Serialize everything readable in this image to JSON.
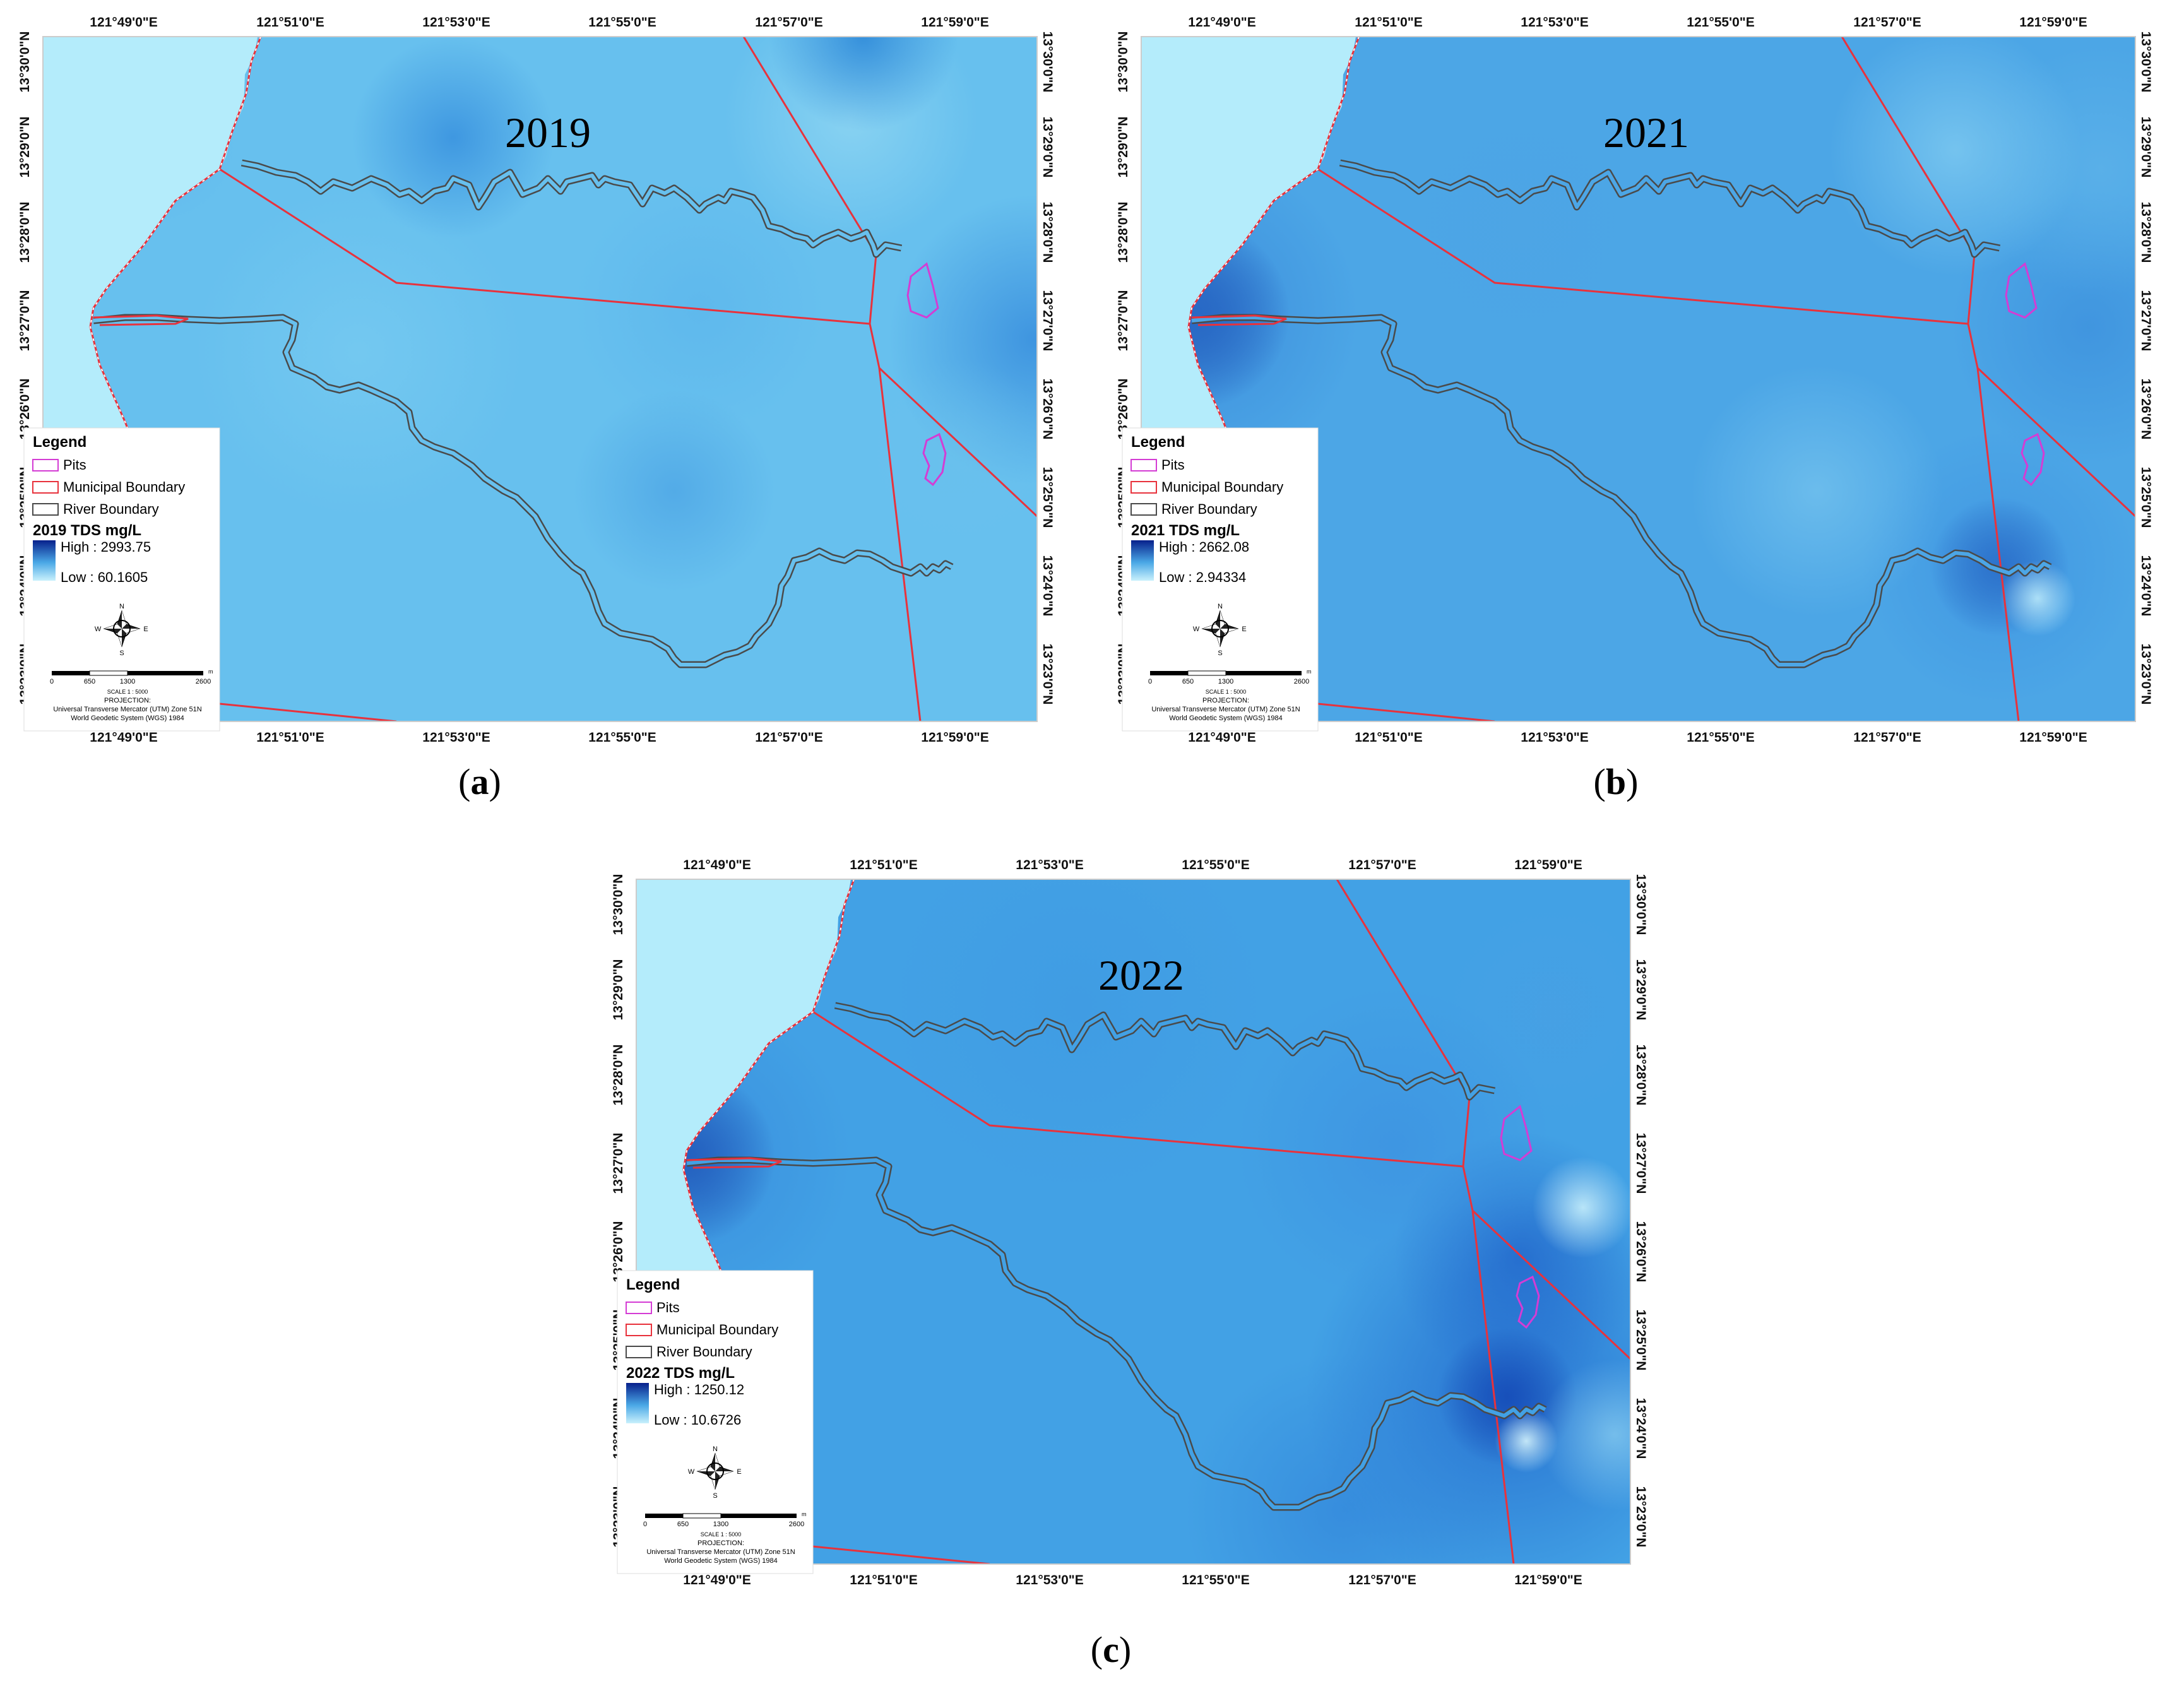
{
  "maps": [
    {
      "year": "2019",
      "caption": "a",
      "lon_ticks": [
        "121°49'0\"E",
        "121°51'0\"E",
        "121°53'0\"E",
        "121°55'0\"E",
        "121°57'0\"E",
        "121°59'0\"E"
      ],
      "lat_ticks": [
        "13°30'0\"N",
        "13°29'0\"N",
        "13°28'0\"N",
        "13°27'0\"N",
        "13°26'0\"N",
        "13°25'0\"N",
        "13°24'0\"N",
        "13°23'0\"N"
      ],
      "legend": {
        "title": "Legend",
        "items": [
          "Pits",
          "Municipal Boundary",
          "River Boundary"
        ],
        "scale_title": "2019 TDS mg/L",
        "high": "High : 2993.75",
        "low": "Low : 60.1605"
      }
    },
    {
      "year": "2021",
      "caption": "b",
      "lon_ticks": [
        "121°49'0\"E",
        "121°51'0\"E",
        "121°53'0\"E",
        "121°55'0\"E",
        "121°57'0\"E",
        "121°59'0\"E"
      ],
      "lat_ticks": [
        "13°30'0\"N",
        "13°29'0\"N",
        "13°28'0\"N",
        "13°27'0\"N",
        "13°26'0\"N",
        "13°25'0\"N",
        "13°24'0\"N",
        "13°23'0\"N"
      ],
      "legend": {
        "title": "Legend",
        "items": [
          "Pits",
          "Municipal Boundary",
          "River Boundary"
        ],
        "scale_title": "2021 TDS mg/L",
        "high": "High : 2662.08",
        "low": "Low : 2.94334"
      }
    },
    {
      "year": "2022",
      "caption": "c",
      "lon_ticks": [
        "121°49'0\"E",
        "121°51'0\"E",
        "121°53'0\"E",
        "121°55'0\"E",
        "121°57'0\"E",
        "121°59'0\"E"
      ],
      "lat_ticks": [
        "13°30'0\"N",
        "13°29'0\"N",
        "13°28'0\"N",
        "13°27'0\"N",
        "13°26'0\"N",
        "13°25'0\"N",
        "13°24'0\"N",
        "13°23'0\"N"
      ],
      "legend": {
        "title": "Legend",
        "items": [
          "Pits",
          "Municipal Boundary",
          "River Boundary"
        ],
        "scale_title": "2022 TDS mg/L",
        "high": "High : 1250.12",
        "low": "Low : 10.6726"
      }
    }
  ],
  "scalebar": {
    "labels": [
      "0",
      "650",
      "1300",
      "2600"
    ],
    "unit": "m",
    "scale": "SCALE 1 : 5000",
    "projection_title": "PROJECTION:",
    "projection_1": "Universal Transverse Mercator (UTM) Zone 51N",
    "projection_2": "World Geodetic System (WGS) 1984"
  },
  "compass": {
    "n": "N",
    "s": "S",
    "e": "E",
    "w": "W"
  },
  "colors": {
    "sea": "#b4ecfb",
    "land_light": "#7fd0f2",
    "land_mid": "#4aa8e6",
    "high": "#08208c",
    "municipal": "#e8323c",
    "river": "#4a4a4a",
    "pits": "#d43cd4"
  }
}
